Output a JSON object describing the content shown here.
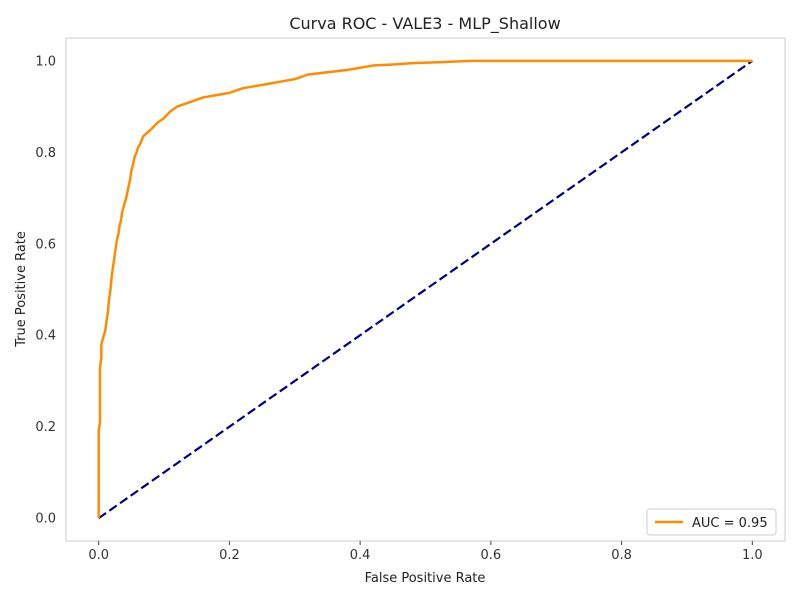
{
  "chart_data": {
    "type": "line",
    "title": "Curva ROC - VALE3 - MLP_Shallow",
    "xlabel": "False Positive Rate",
    "ylabel": "True Positive Rate",
    "xlim": [
      -0.05,
      1.05
    ],
    "ylim": [
      -0.05,
      1.05
    ],
    "xticks": [
      0.0,
      0.2,
      0.4,
      0.6,
      0.8,
      1.0
    ],
    "yticks": [
      0.0,
      0.2,
      0.4,
      0.6,
      0.8,
      1.0
    ],
    "xtick_labels": [
      "0.0",
      "0.2",
      "0.4",
      "0.6",
      "0.8",
      "1.0"
    ],
    "ytick_labels": [
      "0.0",
      "0.2",
      "0.4",
      "0.6",
      "0.8",
      "1.0"
    ],
    "grid": false,
    "legend_position": "lower-right",
    "series": [
      {
        "name": "AUC = 0.95",
        "color": "#ff8c00",
        "style": "solid",
        "x": [
          0.0,
          0.0,
          0.002,
          0.002,
          0.004,
          0.004,
          0.006,
          0.008,
          0.01,
          0.012,
          0.014,
          0.016,
          0.018,
          0.02,
          0.022,
          0.024,
          0.026,
          0.028,
          0.03,
          0.032,
          0.034,
          0.036,
          0.038,
          0.04,
          0.042,
          0.045,
          0.048,
          0.05,
          0.052,
          0.055,
          0.058,
          0.06,
          0.064,
          0.068,
          0.072,
          0.076,
          0.08,
          0.09,
          0.1,
          0.11,
          0.12,
          0.13,
          0.14,
          0.15,
          0.16,
          0.18,
          0.2,
          0.21,
          0.22,
          0.24,
          0.26,
          0.28,
          0.3,
          0.32,
          0.35,
          0.38,
          0.4,
          0.42,
          0.45,
          0.48,
          0.52,
          0.57,
          0.6,
          0.7,
          0.8,
          0.9,
          1.0
        ],
        "y": [
          0.0,
          0.19,
          0.21,
          0.33,
          0.35,
          0.38,
          0.39,
          0.4,
          0.41,
          0.43,
          0.45,
          0.48,
          0.5,
          0.53,
          0.55,
          0.57,
          0.59,
          0.61,
          0.62,
          0.64,
          0.65,
          0.67,
          0.68,
          0.69,
          0.7,
          0.72,
          0.74,
          0.76,
          0.77,
          0.79,
          0.8,
          0.81,
          0.82,
          0.835,
          0.84,
          0.845,
          0.85,
          0.865,
          0.875,
          0.89,
          0.9,
          0.905,
          0.91,
          0.915,
          0.92,
          0.925,
          0.93,
          0.935,
          0.94,
          0.945,
          0.95,
          0.955,
          0.96,
          0.97,
          0.975,
          0.98,
          0.985,
          0.99,
          0.992,
          0.995,
          0.997,
          1.0,
          1.0,
          1.0,
          1.0,
          1.0,
          1.0
        ]
      },
      {
        "name": "",
        "color": "#000080",
        "style": "dashed",
        "x": [
          0.0,
          1.0
        ],
        "y": [
          0.0,
          1.0
        ]
      }
    ]
  }
}
